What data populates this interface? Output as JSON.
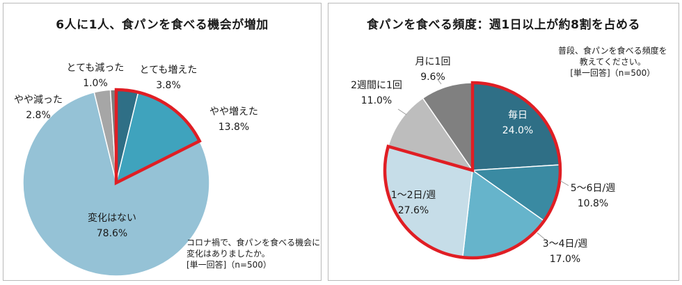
{
  "chart_data": [
    {
      "type": "pie",
      "title": "6人に1人、食パンを食べる機会が増加",
      "slices": [
        {
          "label": "とても増えた",
          "value": 3.8,
          "value_text": "3.8%",
          "color": "#2f6f86"
        },
        {
          "label": "やや増えた",
          "value": 13.8,
          "value_text": "13.8%",
          "color": "#3fa3bd"
        },
        {
          "label": "変化はない",
          "value": 78.6,
          "value_text": "78.6%",
          "color": "#95c2d6"
        },
        {
          "label": "やや減った",
          "value": 2.8,
          "value_text": "2.8%",
          "color": "#a6a6a6"
        },
        {
          "label": "とても減った",
          "value": 1.0,
          "value_text": "1.0%",
          "color": "#7f7f7f"
        }
      ],
      "highlight": [
        "とても増えた",
        "やや増えた"
      ],
      "highlight_color": "#e01e24",
      "note": [
        "コロナ禍で、食パンを食べる機会に",
        "変化はありましたか。",
        "[単一回答]（n=500）"
      ]
    },
    {
      "type": "pie",
      "title": "食パンを食べる頻度：週1日以上が約8割を占める",
      "slices": [
        {
          "label": "毎日",
          "value": 24.0,
          "value_text": "24.0%",
          "color": "#2f6f86"
        },
        {
          "label": "5～6日/週",
          "value": 10.8,
          "value_text": "10.8%",
          "color": "#3a8aa2"
        },
        {
          "label": "3～4日/週",
          "value": 17.0,
          "value_text": "17.0%",
          "color": "#66b4cb"
        },
        {
          "label": "1～2日/週",
          "value": 27.6,
          "value_text": "27.6%",
          "color": "#c6dde8"
        },
        {
          "label": "2週間に1回",
          "value": 11.0,
          "value_text": "11.0%",
          "color": "#bdbdbd"
        },
        {
          "label": "月に1回",
          "value": 9.6,
          "value_text": "9.6%",
          "color": "#808080"
        }
      ],
      "highlight": [
        "毎日",
        "5～6日/週",
        "3～4日/週",
        "1～2日/週"
      ],
      "highlight_color": "#e01e24",
      "note": [
        "普段、食パンを食べる頻度を",
        "教えてください。",
        "[単一回答]（n=500）"
      ]
    }
  ]
}
